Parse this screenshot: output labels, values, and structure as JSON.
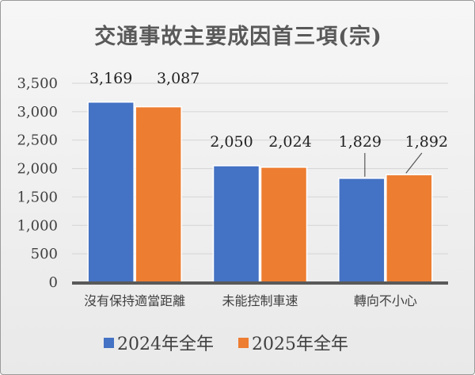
{
  "chart_data": {
    "type": "bar",
    "title": "交通事故主要成因首三項(宗)",
    "categories": [
      "沒有保持適當距離",
      "未能控制車速",
      "轉向不小心"
    ],
    "series": [
      {
        "name": "2024年全年",
        "values": [
          3169,
          2050,
          1829
        ],
        "labels": [
          "3,169",
          "2,050",
          "1,829"
        ],
        "color": "#4472C4"
      },
      {
        "name": "2025年全年",
        "values": [
          3087,
          2024,
          1892
        ],
        "labels": [
          "3,087",
          "2,024",
          "1,892"
        ],
        "color": "#ED7D31"
      }
    ],
    "yticks": [
      "0",
      "500",
      "1,000",
      "1,500",
      "2,000",
      "2,500",
      "3,000",
      "3,500"
    ],
    "ylim": [
      0,
      3500
    ],
    "grid": true,
    "legend": "bottom"
  }
}
